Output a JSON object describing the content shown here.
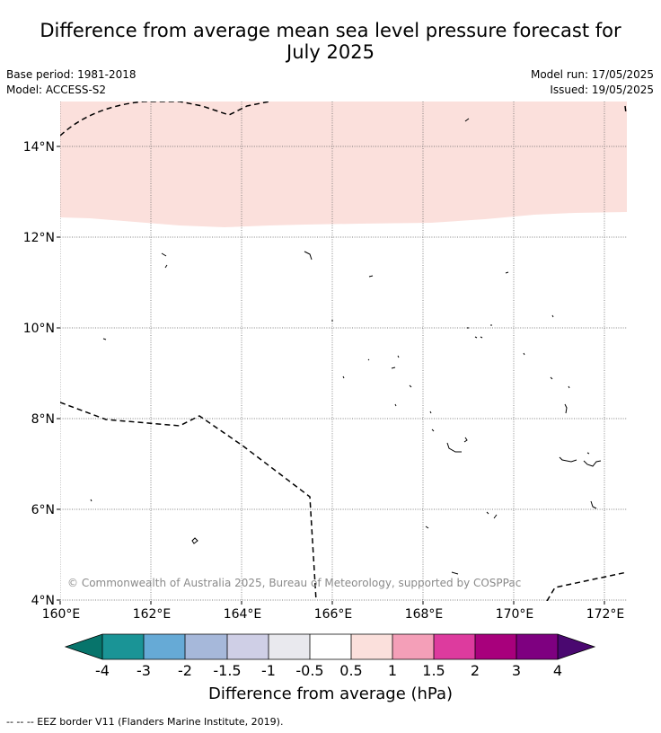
{
  "title": {
    "line1": "Difference from average mean sea level pressure forecast for",
    "line2": "July 2025"
  },
  "meta": {
    "base_period": "Base period: 1981-2018",
    "model": "Model: ACCESS-S2",
    "model_run": "Model run: 17/05/2025",
    "issued": "Issued: 19/05/2025"
  },
  "map": {
    "lon_ticks": [
      "160°E",
      "162°E",
      "164°E",
      "166°E",
      "168°E",
      "170°E",
      "172°E"
    ],
    "lat_ticks": [
      "14°N",
      "12°N",
      "10°N",
      "8°N",
      "6°N",
      "4°N"
    ],
    "copyright": "© Commonwealth of Australia 2025, Bureau of Meteorology, supported by COSPPac",
    "colors": {
      "anomaly_fill": "#fbe0dc",
      "gridline": "#555555",
      "coastline": "#000000"
    },
    "shaded_region": {
      "category": "0.5 to 1",
      "color": "#fbe0dc"
    }
  },
  "legend": {
    "tick_labels": [
      "-4",
      "-3",
      "-2",
      "-1.5",
      "-1",
      "-0.5",
      "0.5",
      "1",
      "1.5",
      "2",
      "3",
      "4"
    ],
    "bins": [
      "#1a9496",
      "#66aad6",
      "#a6b8da",
      "#cfcfe6",
      "#e9e9ee",
      "#ffffff",
      "#fbe0dc",
      "#f49fb8",
      "#dd3b9e",
      "#a8007c",
      "#7e0080"
    ],
    "extend_low": "#07746b",
    "extend_high": "#4a0870",
    "label": "Difference from average (hPa)"
  },
  "footnote": "-- -- -- EEZ border V11 (Flanders Marine Institute, 2019)."
}
